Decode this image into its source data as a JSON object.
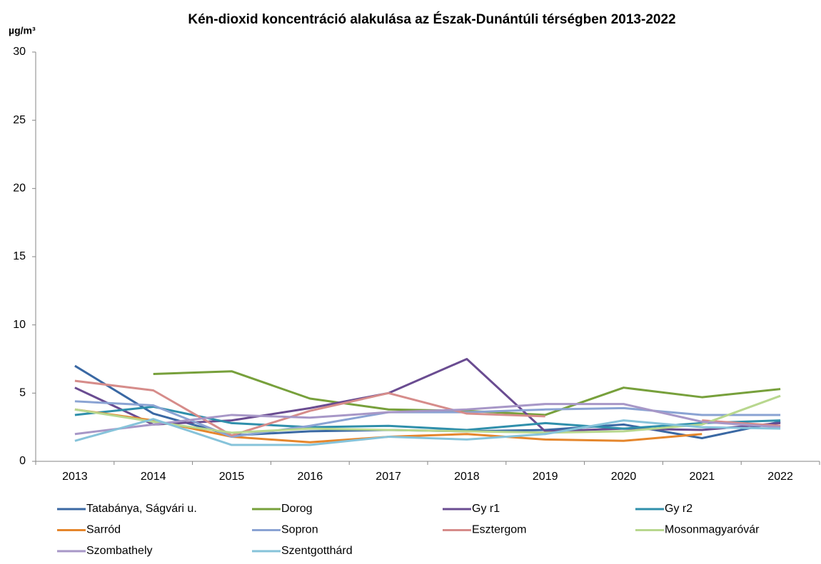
{
  "chart_data": {
    "type": "line",
    "title": "Kén-dioxid koncentráció alakulása az Észak-Dunántúli térségben 2013-2022",
    "y_label": "µg/m³",
    "categories": [
      "2013",
      "2014",
      "2015",
      "2016",
      "2017",
      "2018",
      "2019",
      "2020",
      "2021",
      "2022"
    ],
    "ylim": [
      0,
      30
    ],
    "yticks": [
      0,
      5,
      10,
      15,
      20,
      25,
      30
    ],
    "grid": false,
    "legend": "bottom",
    "series": [
      {
        "name": "Tatabánya, Ságvári u.",
        "color": "#3a68a3",
        "values": [
          7.0,
          3.5,
          1.9,
          2.2,
          2.3,
          2.2,
          2.3,
          2.7,
          1.7,
          2.9
        ]
      },
      {
        "name": "Dorog",
        "color": "#77a03b",
        "values": [
          null,
          6.4,
          6.6,
          4.6,
          3.8,
          3.7,
          3.4,
          5.4,
          4.7,
          5.3
        ]
      },
      {
        "name": "Gy r1",
        "color": "#6a4c91",
        "values": [
          5.4,
          2.7,
          3.0,
          3.9,
          5.0,
          7.5,
          2.2,
          2.4,
          2.3,
          2.8
        ]
      },
      {
        "name": "Gy r2",
        "color": "#2f8fab",
        "values": [
          3.4,
          4.0,
          2.8,
          2.5,
          2.6,
          2.3,
          2.8,
          2.4,
          2.8,
          3.0
        ]
      },
      {
        "name": "Sarród",
        "color": "#e5862c",
        "values": [
          3.8,
          3.0,
          1.8,
          1.4,
          1.8,
          2.0,
          1.6,
          1.5,
          2.0,
          null
        ]
      },
      {
        "name": "Sopron",
        "color": "#8aa3d3",
        "values": [
          4.4,
          4.1,
          1.8,
          2.6,
          3.6,
          3.6,
          3.8,
          3.9,
          3.4,
          3.4
        ]
      },
      {
        "name": "Esztergom",
        "color": "#d68c8a",
        "values": [
          5.9,
          5.2,
          1.9,
          3.7,
          5.0,
          3.5,
          3.3,
          null,
          3.0,
          2.6
        ]
      },
      {
        "name": "Mosonmagyaróvár",
        "color": "#b8d78e",
        "values": [
          3.8,
          2.9,
          2.1,
          2.4,
          2.3,
          2.2,
          2.1,
          2.2,
          2.7,
          4.8
        ]
      },
      {
        "name": "Szombathely",
        "color": "#a797c7",
        "values": [
          2.0,
          2.7,
          3.4,
          3.2,
          3.6,
          3.8,
          4.2,
          4.2,
          2.9,
          2.5
        ]
      },
      {
        "name": "Szentgotthárd",
        "color": "#86c3da",
        "values": [
          1.5,
          3.1,
          1.2,
          1.2,
          1.8,
          1.6,
          2.0,
          3.0,
          2.5,
          2.4
        ]
      }
    ]
  }
}
